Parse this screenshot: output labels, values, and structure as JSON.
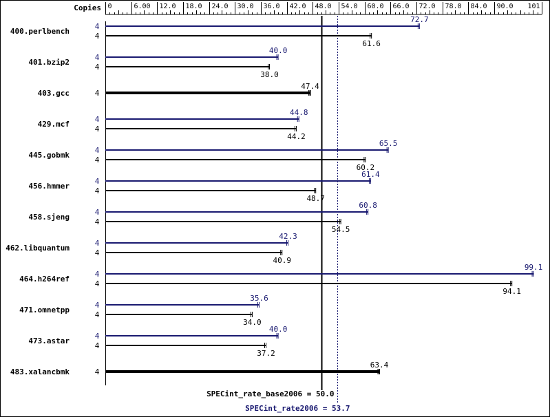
{
  "chart_data": {
    "type": "bar",
    "orientation": "horizontal",
    "x_axis": {
      "label": "Copies",
      "min": 0,
      "max": 101,
      "ticks": [
        {
          "value": 0,
          "label": "0"
        },
        {
          "value": 6,
          "label": "6.00"
        },
        {
          "value": 12,
          "label": "12.0"
        },
        {
          "value": 18,
          "label": "18.0"
        },
        {
          "value": 24,
          "label": "24.0"
        },
        {
          "value": 30,
          "label": "30.0"
        },
        {
          "value": 36,
          "label": "36.0"
        },
        {
          "value": 42,
          "label": "42.0"
        },
        {
          "value": 48,
          "label": "48.0"
        },
        {
          "value": 54,
          "label": "54.0"
        },
        {
          "value": 60,
          "label": "60.0"
        },
        {
          "value": 66,
          "label": "66.0"
        },
        {
          "value": 72,
          "label": "72.0"
        },
        {
          "value": 78,
          "label": "78.0"
        },
        {
          "value": 84,
          "label": "84.0"
        },
        {
          "value": 90,
          "label": "90.0"
        },
        {
          "value": 101,
          "label": "101"
        }
      ]
    },
    "series": [
      {
        "key": "peak",
        "color": "#191970"
      },
      {
        "key": "base",
        "color": "#000000"
      }
    ],
    "benchmarks": [
      {
        "name": "400.perlbench",
        "copies": "4",
        "peak": 72.7,
        "peak_label": "72.7",
        "base": 61.6,
        "base_label": "61.6"
      },
      {
        "name": "401.bzip2",
        "copies": "4",
        "peak": 40.0,
        "peak_label": "40.0",
        "base": 38.0,
        "base_label": "38.0"
      },
      {
        "name": "403.gcc",
        "copies": "4",
        "peak": null,
        "peak_label": null,
        "base": 47.4,
        "base_label": "47.4"
      },
      {
        "name": "429.mcf",
        "copies": "4",
        "peak": 44.8,
        "peak_label": "44.8",
        "base": 44.2,
        "base_label": "44.2"
      },
      {
        "name": "445.gobmk",
        "copies": "4",
        "peak": 65.5,
        "peak_label": "65.5",
        "base": 60.2,
        "base_label": "60.2"
      },
      {
        "name": "456.hmmer",
        "copies": "4",
        "peak": 61.4,
        "peak_label": "61.4",
        "base": 48.7,
        "base_label": "48.7"
      },
      {
        "name": "458.sjeng",
        "copies": "4",
        "peak": 60.8,
        "peak_label": "60.8",
        "base": 54.5,
        "base_label": "54.5"
      },
      {
        "name": "462.libquantum",
        "copies": "4",
        "peak": 42.3,
        "peak_label": "42.3",
        "base": 40.9,
        "base_label": "40.9"
      },
      {
        "name": "464.h264ref",
        "copies": "4",
        "peak": 99.1,
        "peak_label": "99.1",
        "base": 94.1,
        "base_label": "94.1"
      },
      {
        "name": "471.omnetpp",
        "copies": "4",
        "peak": 35.6,
        "peak_label": "35.6",
        "base": 34.0,
        "base_label": "34.0"
      },
      {
        "name": "473.astar",
        "copies": "4",
        "peak": 40.0,
        "peak_label": "40.0",
        "base": 37.2,
        "base_label": "37.2"
      },
      {
        "name": "483.xalancbmk",
        "copies": "4",
        "peak": null,
        "peak_label": null,
        "base": 63.4,
        "base_label": "63.4"
      }
    ],
    "reference_lines": [
      {
        "key": "base",
        "value": 50.0,
        "label": "SPECint_rate_base2006 = 50.0",
        "style": "solid",
        "color": "#000000"
      },
      {
        "key": "peak",
        "value": 53.7,
        "label": "SPECint_rate2006 = 53.7",
        "style": "dotted",
        "color": "#191970"
      }
    ],
    "grid": false
  }
}
